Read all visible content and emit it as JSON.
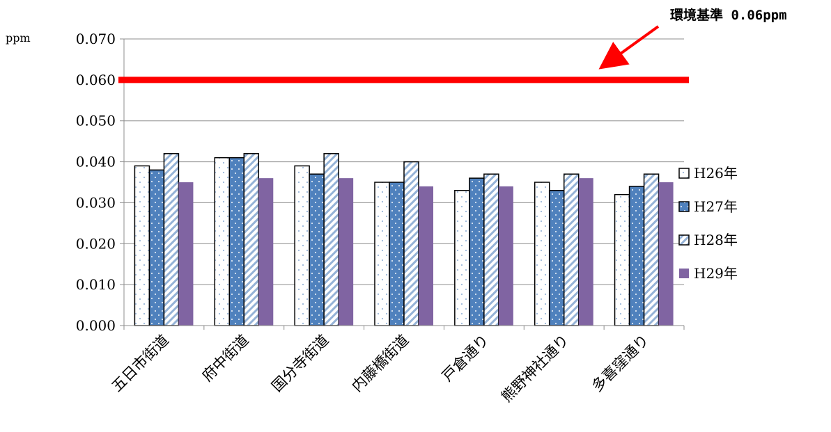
{
  "chart_data": {
    "type": "bar",
    "unit_label": "ppm",
    "categories": [
      "五日市街道",
      "府中街道",
      "国分寺街道",
      "内藤橋街道",
      "戸倉通り",
      "熊野神社通り",
      "多喜窪通り"
    ],
    "series": [
      {
        "name": "H26年",
        "values": [
          0.039,
          0.041,
          0.039,
          0.035,
          0.033,
          0.035,
          0.032
        ],
        "fill": "#ffffff",
        "pattern": "dots"
      },
      {
        "name": "H27年",
        "values": [
          0.038,
          0.041,
          0.037,
          0.035,
          0.036,
          0.033,
          0.034
        ],
        "fill": "#4f81bd",
        "pattern": "dots"
      },
      {
        "name": "H28年",
        "values": [
          0.042,
          0.042,
          0.042,
          0.04,
          0.037,
          0.037,
          0.037
        ],
        "fill": "#ffffff",
        "pattern": "diagonal"
      },
      {
        "name": "H29年",
        "values": [
          0.035,
          0.036,
          0.036,
          0.034,
          0.034,
          0.036,
          0.035
        ],
        "fill": "#8064a2",
        "pattern": "solid"
      }
    ],
    "ylim": [
      0,
      0.07
    ],
    "yticks": [
      "0.000",
      "0.010",
      "0.020",
      "0.030",
      "0.040",
      "0.050",
      "0.060",
      "0.070"
    ],
    "grid": true,
    "legend_position": "right",
    "reference_line": {
      "value": 0.06,
      "color": "#ff0000",
      "label": "環境基準 0.06ppm"
    }
  }
}
